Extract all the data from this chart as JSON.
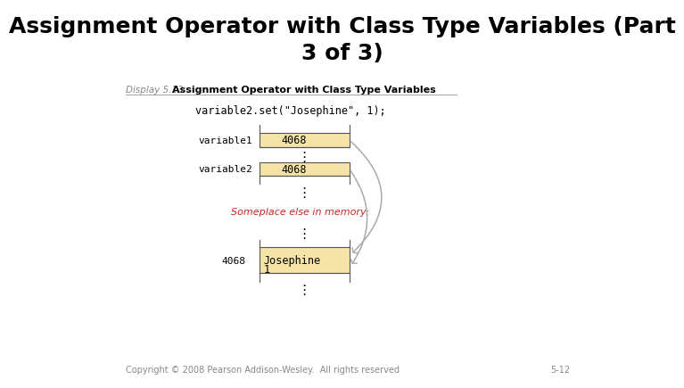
{
  "title": "Assignment Operator with Class Type Variables (Part\n3 of 3)",
  "title_fontsize": 18,
  "display_label": "Display 5.13",
  "display_title": "Assignment Operator with Class Type Variables",
  "code_line": "variable2.set(\"Josephine\", 1);",
  "variable1_label": "variable1",
  "variable1_value": "4068",
  "variable2_label": "variable2",
  "variable2_value": "4068",
  "address_label": "4068",
  "box_content_line1": "Josephine",
  "box_content_line2": "1",
  "someplace_text": "Someplace else in memory:",
  "copyright_text": "Copyright © 2008 Pearson Addison-Wesley.  All rights reserved",
  "page_num": "5-12",
  "bg_color": "#ffffff",
  "box_fill_color": "#f5e4a8",
  "box_edge_color": "#555555",
  "arrow_color": "#aaaaaa",
  "someplace_color": "#cc2222",
  "title_color": "#000000",
  "display_label_color": "#888888",
  "footer_color": "#888888"
}
